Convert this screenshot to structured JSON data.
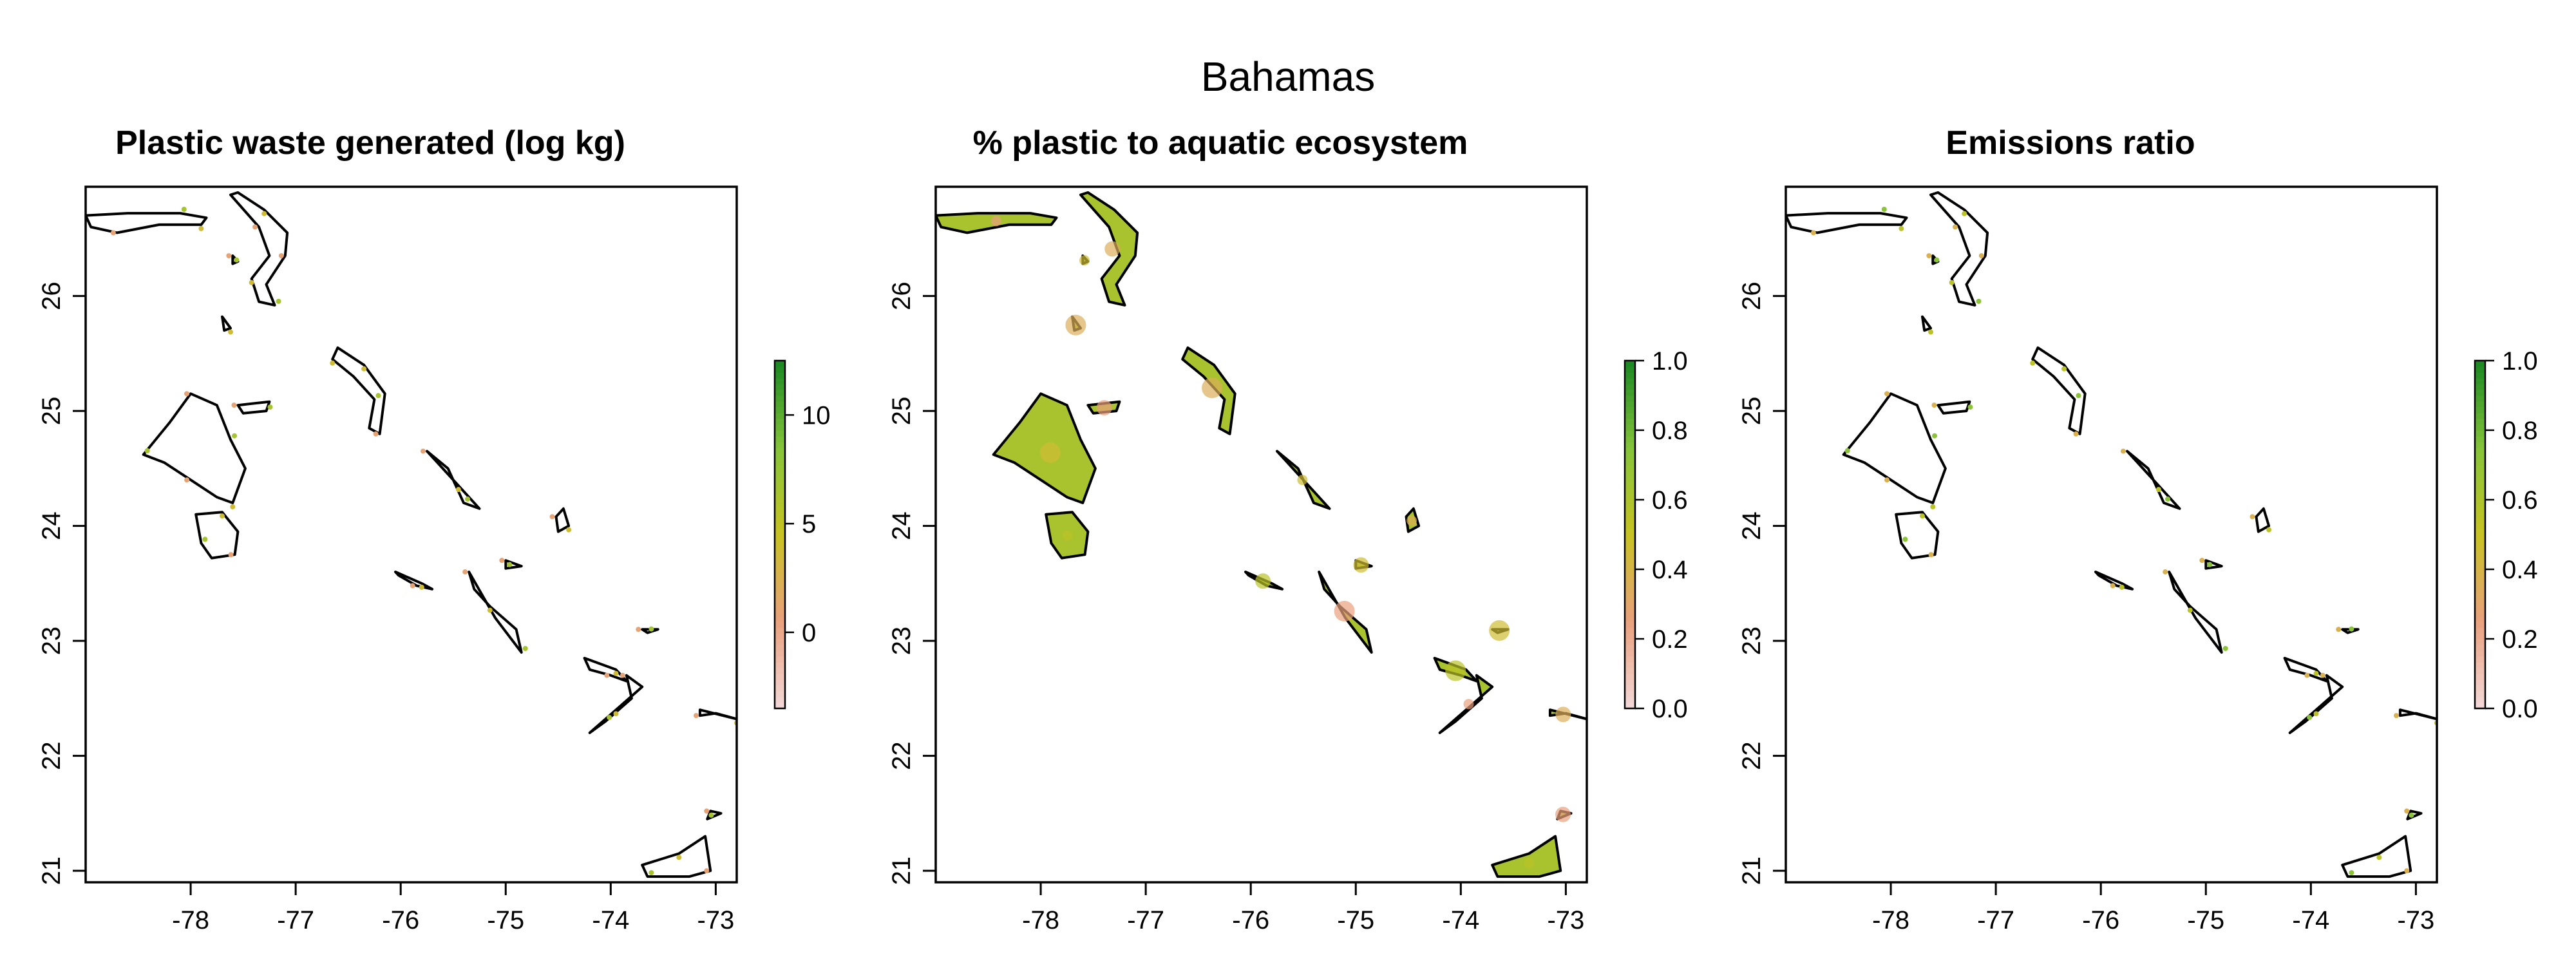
{
  "figure": {
    "title": "Bahamas"
  },
  "colors": {
    "land_fill": "#ffffff",
    "coast_outline": "#000000",
    "low": "#f3d7d6",
    "mid_low": "#e9a07c",
    "mid": "#c8c323",
    "mid_high": "#86c43a",
    "high": "#1d8a24"
  },
  "chart_data": [
    {
      "type": "map",
      "title": "Plastic waste generated (log kg)",
      "x_ticks": [
        "-78",
        "-77",
        "-76",
        "-75",
        "-74",
        "-73"
      ],
      "y_ticks": [
        "21",
        "22",
        "23",
        "24",
        "25",
        "26"
      ],
      "xlim": [
        -79.0,
        -72.8
      ],
      "ylim": [
        20.9,
        26.95
      ],
      "legend_ticks": [
        "0",
        "5",
        "10"
      ],
      "legend_range": [
        -3.5,
        12.5
      ],
      "coverage": "sparse",
      "fill_value": 0.45
    },
    {
      "type": "map",
      "title": "% plastic to aquatic ecosystem",
      "x_ticks": [
        "-78",
        "-77",
        "-76",
        "-75",
        "-74",
        "-73"
      ],
      "y_ticks": [
        "21",
        "22",
        "23",
        "24",
        "25",
        "26"
      ],
      "xlim": [
        -79.0,
        -72.8
      ],
      "ylim": [
        20.9,
        26.95
      ],
      "legend_ticks": [
        "0.0",
        "0.2",
        "0.4",
        "0.6",
        "0.8",
        "1.0"
      ],
      "legend_range": [
        0,
        1
      ],
      "coverage": "full",
      "fill_value": 0.62
    },
    {
      "type": "map",
      "title": "Emissions ratio",
      "x_ticks": [
        "-78",
        "-77",
        "-76",
        "-75",
        "-74",
        "-73"
      ],
      "y_ticks": [
        "21",
        "22",
        "23",
        "24",
        "25",
        "26"
      ],
      "xlim": [
        -79.0,
        -72.8
      ],
      "ylim": [
        20.9,
        26.95
      ],
      "legend_ticks": [
        "0.0",
        "0.2",
        "0.4",
        "0.6",
        "0.8",
        "1.0"
      ],
      "legend_range": [
        0,
        1
      ],
      "coverage": "sparse",
      "fill_value": 0.55
    }
  ]
}
